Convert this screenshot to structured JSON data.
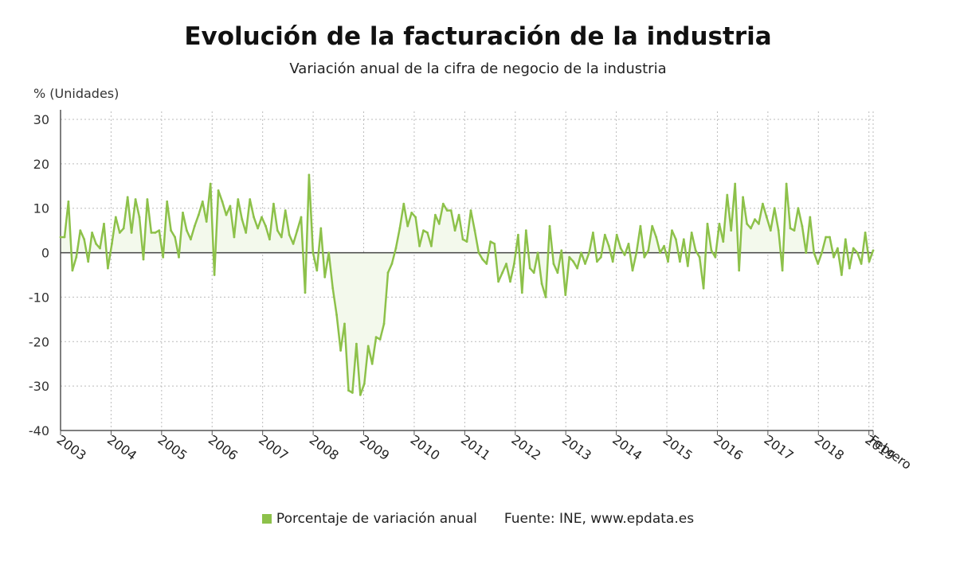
{
  "title": "Evolución de la facturación de la industria",
  "subtitle": "Variación anual de la cifra de negocio de la industria",
  "unit_label": "% (Unidades)",
  "legend": {
    "series_label": "Porcentaje de variación anual",
    "source": "Fuente: INE, www.epdata.es"
  },
  "colors": {
    "series": "#8dc14a",
    "fill": "#f3f9ec",
    "zero_line": "#444444",
    "grid": "#bbbbbb",
    "axis": "#555555"
  },
  "chart_data": {
    "type": "area",
    "x_start": "2003-01",
    "x_end": "2019-02",
    "x_ticks": [
      "2003",
      "2004",
      "2005",
      "2006",
      "2007",
      "2008",
      "2009",
      "2010",
      "2011",
      "2012",
      "2013",
      "2014",
      "2015",
      "2016",
      "2017",
      "2018",
      "2019",
      "Febrero"
    ],
    "ylim": [
      -40,
      30
    ],
    "y_ticks": [
      30,
      20,
      10,
      0,
      -10,
      -20,
      -30,
      -40
    ],
    "grid": true,
    "legend_position": "bottom",
    "series": [
      {
        "name": "Porcentaje de variación anual",
        "values": [
          3.5,
          3.5,
          11.5,
          -4,
          -1,
          5,
          3,
          -2,
          4.5,
          2,
          1,
          6.5,
          -3.5,
          2,
          8,
          4.5,
          5.5,
          12.5,
          4.5,
          12,
          8,
          -1.5,
          12,
          4.5,
          4.5,
          5,
          -1,
          11.5,
          5,
          3.5,
          -1,
          9,
          5,
          3,
          6,
          8.5,
          11.5,
          7,
          15.5,
          -5,
          14,
          11.5,
          8.5,
          10.5,
          3.5,
          12,
          7.5,
          4.5,
          12,
          8,
          5.5,
          8,
          6,
          3,
          11,
          5,
          3.5,
          9.5,
          4,
          2,
          5,
          8,
          -9,
          17.5,
          0,
          -4,
          5.5,
          -5.5,
          0,
          -8,
          -14,
          -22,
          -16,
          -31,
          -31.5,
          -20.5,
          -32,
          -29.5,
          -21,
          -25,
          -19,
          -19.5,
          -16,
          -4.5,
          -2.5,
          1,
          5.5,
          11,
          6,
          9,
          8,
          1.5,
          5,
          4.5,
          1.5,
          8.5,
          6.5,
          11,
          9.5,
          9.5,
          5,
          8.5,
          3,
          2.5,
          9.5,
          5,
          0,
          -1.5,
          -2.5,
          2.5,
          2,
          -6.5,
          -4.5,
          -2.5,
          -6.5,
          -2.5,
          4,
          -9,
          5,
          -3.5,
          -4.5,
          0,
          -7,
          -10,
          6,
          -2.5,
          -4.5,
          0.5,
          -9.5,
          -1,
          -2,
          -3.5,
          0,
          -2.5,
          0,
          4.5,
          -2,
          -1,
          4,
          1.5,
          -2,
          4,
          1,
          -0.5,
          2,
          -4,
          0,
          6,
          -1,
          0.5,
          6,
          3.5,
          0,
          1.5,
          -2,
          5,
          3,
          -2,
          3,
          -3,
          4.5,
          0.5,
          -1,
          -8,
          6.5,
          0.5,
          -1,
          6.5,
          2.5,
          13,
          5,
          15.5,
          -4,
          12.5,
          6.5,
          5.5,
          7.5,
          6.5,
          11,
          8,
          5,
          10,
          5,
          -4,
          15.5,
          5.5,
          5,
          10,
          6,
          0,
          8,
          0,
          -2.5,
          0,
          3.5,
          3.5,
          -1,
          1,
          -5,
          3,
          -3.5,
          1,
          0,
          -2.5,
          4.5,
          -2,
          0.5
        ]
      }
    ]
  }
}
